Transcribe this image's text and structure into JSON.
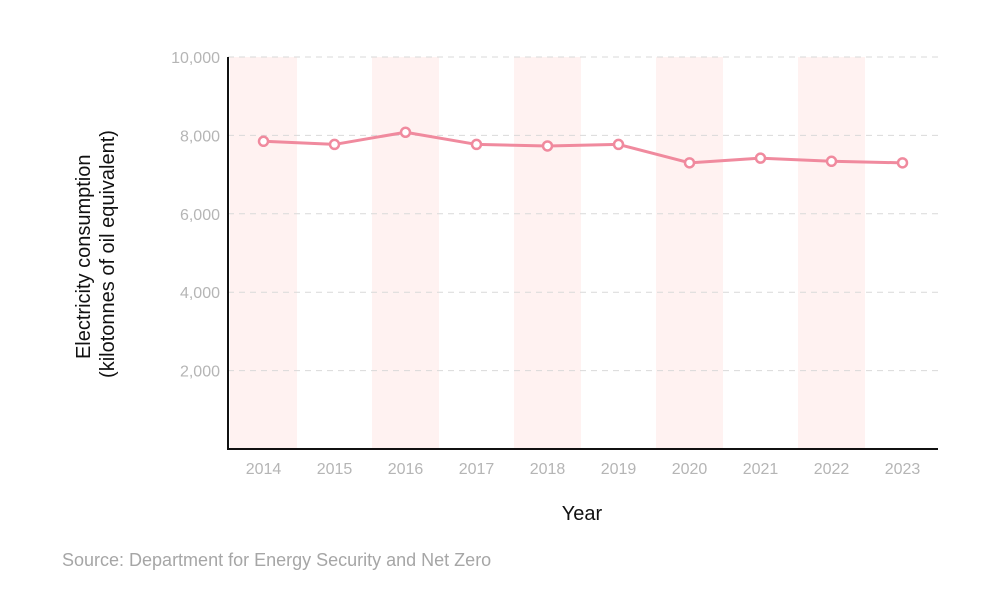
{
  "chart_data": {
    "type": "line",
    "title": "",
    "xlabel": "Year",
    "ylabel_line1": "Electricity consumption",
    "ylabel_line2": "(kilotonnes of oil equivalent)",
    "categories": [
      "2014",
      "2015",
      "2016",
      "2017",
      "2018",
      "2019",
      "2020",
      "2021",
      "2022",
      "2023"
    ],
    "series": [
      {
        "name": "Electricity consumption",
        "values": [
          7850,
          7770,
          8080,
          7770,
          7730,
          7770,
          7300,
          7420,
          7340,
          7300
        ]
      }
    ],
    "ylim": [
      0,
      10000
    ],
    "yticks": [
      2000,
      4000,
      6000,
      8000,
      10000
    ],
    "ytick_labels": [
      "2,000",
      "4,000",
      "6,000",
      "8,000",
      "10,000"
    ],
    "grid": true,
    "shaded_bands": [
      "2014",
      "2016",
      "2018",
      "2020",
      "2022"
    ]
  },
  "colors": {
    "line": "#f08a9e",
    "band": "#fff2f1",
    "grid": "#d9d9d9",
    "axis": "#111111"
  },
  "source": "Source: Department for Energy Security and Net Zero"
}
